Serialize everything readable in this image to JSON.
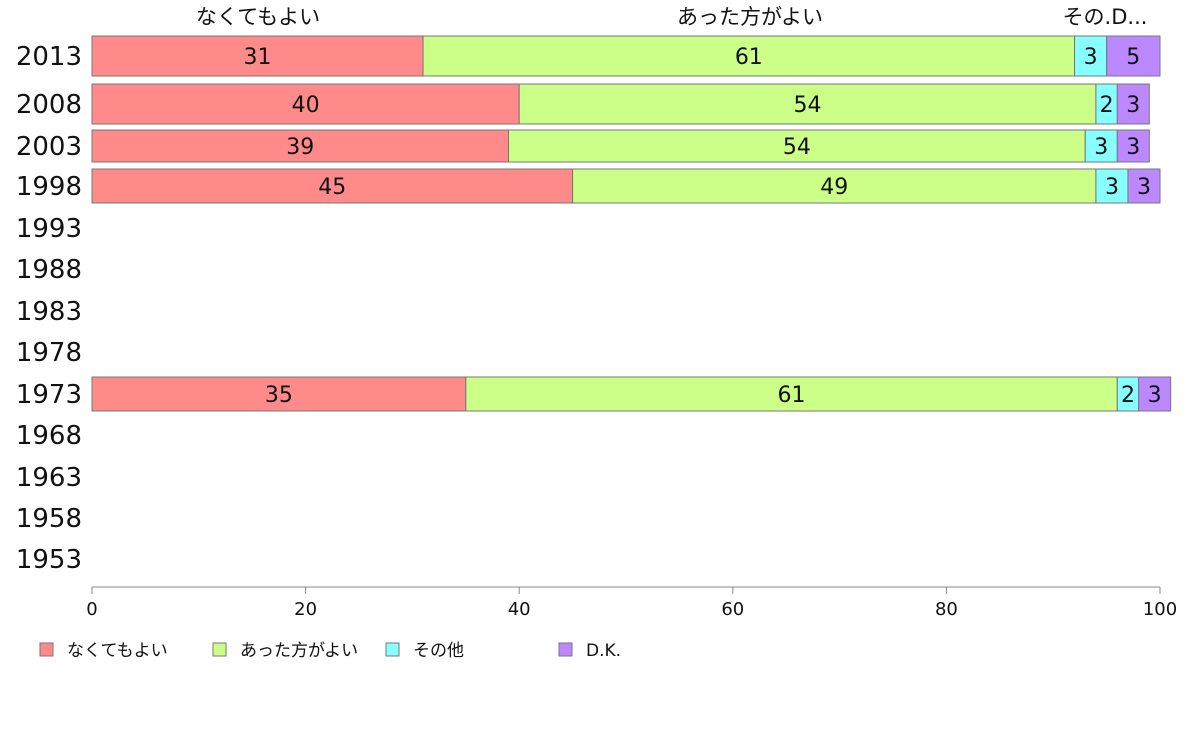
{
  "chart_data": {
    "type": "bar",
    "orientation": "horizontal",
    "stacked": true,
    "xlim": [
      0,
      100
    ],
    "xticks": [
      "0",
      "20",
      "40",
      "60",
      "80",
      "100"
    ],
    "categories": [
      "2013",
      "2008",
      "2003",
      "1998",
      "1993",
      "1988",
      "1983",
      "1978",
      "1973",
      "1968",
      "1963",
      "1958",
      "1953"
    ],
    "top_labels": [
      "なくてもよい",
      "あった方がよい",
      "その.D..."
    ],
    "series": [
      {
        "name": "なくてもよい",
        "color": "#ff8a8a",
        "values": [
          31,
          40,
          39,
          45,
          null,
          null,
          null,
          null,
          35,
          null,
          null,
          null,
          null
        ]
      },
      {
        "name": "あった方がよい",
        "color": "#ccff88",
        "values": [
          61,
          54,
          54,
          49,
          null,
          null,
          null,
          null,
          61,
          null,
          null,
          null,
          null
        ]
      },
      {
        "name": "その他",
        "color": "#88ffff",
        "values": [
          3,
          2,
          3,
          3,
          null,
          null,
          null,
          null,
          2,
          null,
          null,
          null,
          null
        ]
      },
      {
        "name": "D.K.",
        "color": "#bb88ff",
        "values": [
          5,
          3,
          3,
          3,
          null,
          null,
          null,
          null,
          3,
          null,
          null,
          null,
          null
        ]
      }
    ],
    "legend_position": "bottom-left"
  }
}
